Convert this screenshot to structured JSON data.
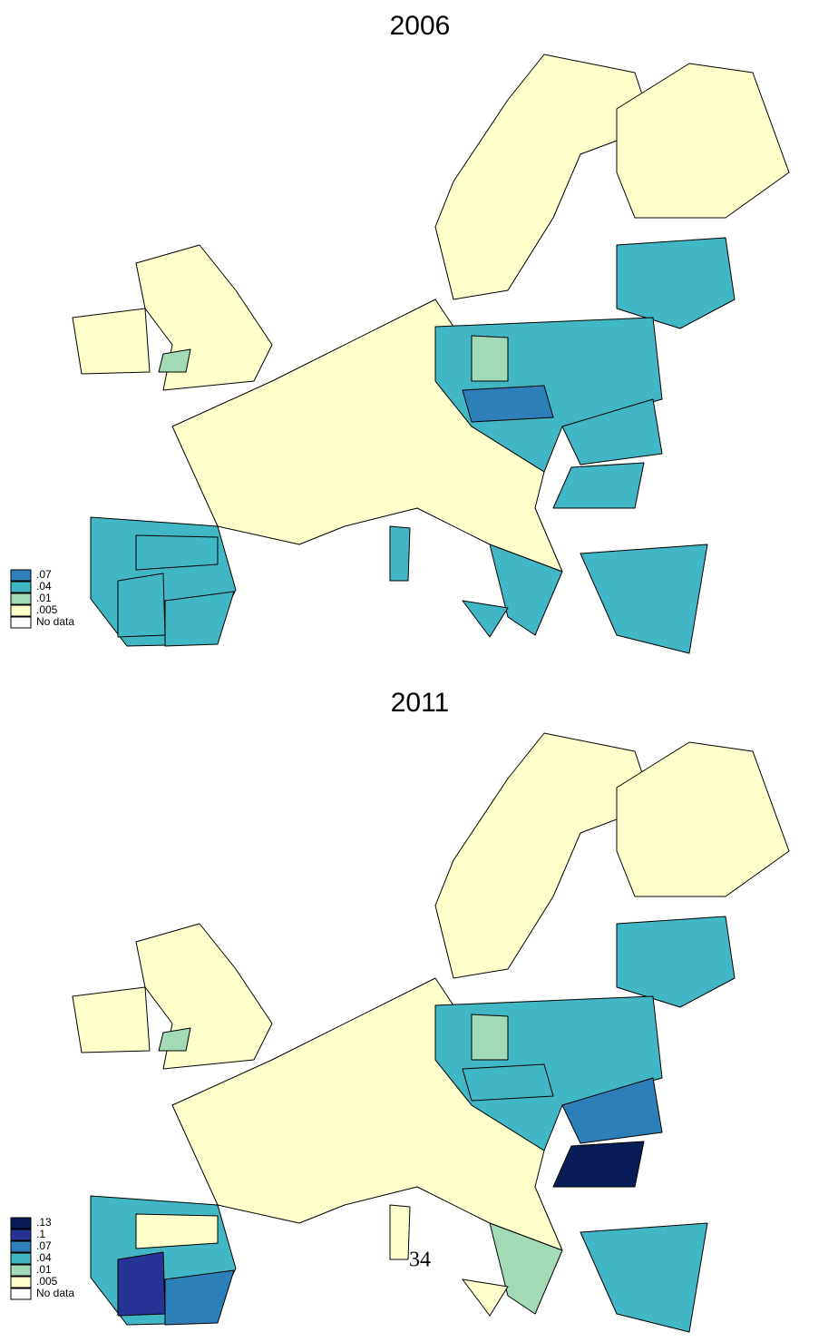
{
  "maps": [
    {
      "title": "2006",
      "legend": [
        {
          "label": ".07",
          "color": "#2c7fb8"
        },
        {
          "label": ".04",
          "color": "#41b6c4"
        },
        {
          "label": ".01",
          "color": "#a1dab4"
        },
        {
          "label": ".005",
          "color": "#ffffcc"
        },
        {
          "label": "No data",
          "color": "#ffffff"
        }
      ]
    },
    {
      "title": "2011",
      "legend": [
        {
          "label": ".13",
          "color": "#081d58"
        },
        {
          "label": ".1",
          "color": "#253494"
        },
        {
          "label": ".07",
          "color": "#2c7fb8"
        },
        {
          "label": ".04",
          "color": "#41b6c4"
        },
        {
          "label": ".01",
          "color": "#a1dab4"
        },
        {
          "label": ".005",
          "color": "#ffffcc"
        },
        {
          "label": "No data",
          "color": "#ffffff"
        }
      ]
    }
  ],
  "page_number": "34"
}
